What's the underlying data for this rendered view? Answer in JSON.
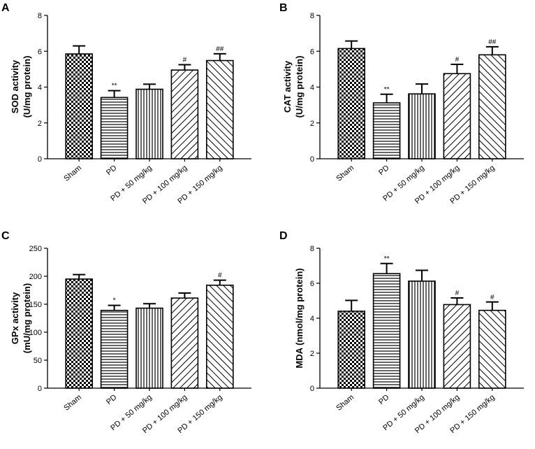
{
  "figure": {
    "panels": [
      {
        "label": "A",
        "chart_data": {
          "type": "bar",
          "categories": [
            "Sham",
            "PD",
            "PD + 50 mg/kg",
            "PD + 100 mg/kg",
            "PD + 150 mg/kg"
          ],
          "values": [
            5.85,
            3.42,
            3.88,
            4.95,
            5.48
          ],
          "errors": [
            0.45,
            0.38,
            0.28,
            0.3,
            0.38
          ],
          "significance": [
            "",
            "**",
            "",
            "#",
            "##"
          ],
          "ylabel_lines": [
            "SOD activity",
            "(U/mg protein)"
          ],
          "ylim": [
            0,
            8
          ],
          "yticks": [
            0,
            2,
            4,
            6,
            8
          ],
          "patterns": [
            "checker",
            "hlines",
            "vlines",
            "diag-up",
            "diag-down"
          ]
        }
      },
      {
        "label": "B",
        "chart_data": {
          "type": "bar",
          "categories": [
            "Sham",
            "PD",
            "PD + 50 mg/kg",
            "PD + 100 mg/kg",
            "PD + 150 mg/kg"
          ],
          "values": [
            6.15,
            3.12,
            3.62,
            4.75,
            5.8
          ],
          "errors": [
            0.42,
            0.48,
            0.55,
            0.52,
            0.45
          ],
          "significance": [
            "",
            "**",
            "",
            "#",
            "##"
          ],
          "ylabel_lines": [
            "CAT activity",
            "(U/mg protein)"
          ],
          "ylim": [
            0,
            8
          ],
          "yticks": [
            0,
            2,
            4,
            6,
            8
          ],
          "patterns": [
            "checker",
            "hlines",
            "vlines",
            "diag-up",
            "diag-down"
          ]
        }
      },
      {
        "label": "C",
        "chart_data": {
          "type": "bar",
          "categories": [
            "Sham",
            "PD",
            "PD + 50 mg/kg",
            "PD + 100 mg/kg",
            "PD + 150 mg/kg"
          ],
          "values": [
            195,
            139,
            143,
            161,
            184
          ],
          "errors": [
            8,
            9,
            8,
            9,
            9
          ],
          "significance": [
            "",
            "*",
            "",
            "",
            "#"
          ],
          "ylabel_lines": [
            "GPx activity",
            "(mU/mg protein)"
          ],
          "ylim": [
            0,
            250
          ],
          "yticks": [
            0,
            50,
            100,
            150,
            200,
            250
          ],
          "patterns": [
            "checker",
            "hlines",
            "vlines",
            "diag-up",
            "diag-down"
          ]
        }
      },
      {
        "label": "D",
        "chart_data": {
          "type": "bar",
          "categories": [
            "Sham",
            "PD",
            "PD + 50 mg/kg",
            "PD + 100 mg/kg",
            "PD + 150 mg/kg"
          ],
          "values": [
            4.4,
            6.55,
            6.12,
            4.78,
            4.45
          ],
          "errors": [
            0.62,
            0.58,
            0.62,
            0.38,
            0.48
          ],
          "significance": [
            "",
            "**",
            "",
            "#",
            "#"
          ],
          "ylabel_lines": [
            "MDA (nmol/mg protein)"
          ],
          "ylim": [
            0,
            8
          ],
          "yticks": [
            0,
            2,
            4,
            6,
            8
          ],
          "patterns": [
            "checker",
            "hlines",
            "vlines",
            "diag-up",
            "diag-down"
          ]
        }
      }
    ],
    "colors": {
      "ink": "#000000",
      "background": "#ffffff"
    }
  }
}
